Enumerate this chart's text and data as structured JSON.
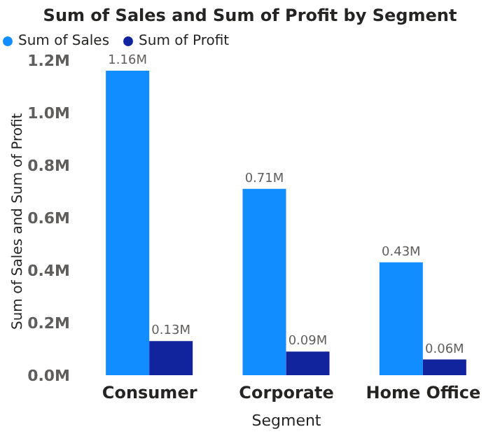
{
  "chart_data": {
    "type": "bar",
    "title": "Sum of Sales and Sum of Profit by Segment",
    "xlabel": "Segment",
    "ylabel": "Sum of Sales and Sum of Profit",
    "categories": [
      "Consumer",
      "Corporate",
      "Home Office"
    ],
    "series": [
      {
        "name": "Sum of Sales",
        "color": "#118dff",
        "values": [
          1.16,
          0.71,
          0.43
        ],
        "value_labels": [
          "1.16M",
          "0.71M",
          "0.43M"
        ]
      },
      {
        "name": "Sum of Profit",
        "color": "#12239e",
        "values": [
          0.13,
          0.09,
          0.06
        ],
        "value_labels": [
          "0.13M",
          "0.09M",
          "0.06M"
        ]
      }
    ],
    "ylim": [
      0,
      1.2
    ],
    "yticks": [
      {
        "value": 0,
        "label": "0.0M"
      },
      {
        "value": 0.2,
        "label": "0.2M"
      },
      {
        "value": 0.4,
        "label": "0.4M"
      },
      {
        "value": 0.6,
        "label": "0.6M"
      },
      {
        "value": 0.8,
        "label": "0.8M"
      },
      {
        "value": 1.0,
        "label": "1.0M"
      },
      {
        "value": 1.2,
        "label": "1.2M"
      }
    ],
    "legend": "top left",
    "grid": false
  }
}
